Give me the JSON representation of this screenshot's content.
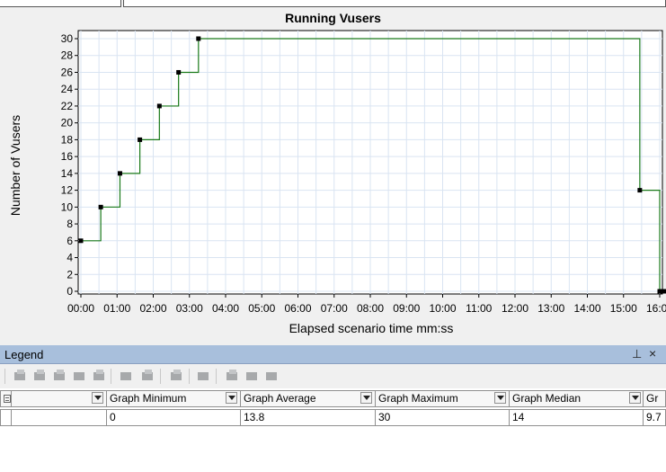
{
  "chart_data": {
    "type": "line",
    "title": "Running Vusers",
    "xlabel": "Elapsed scenario time mm:ss",
    "ylabel": "Number of Vusers",
    "xlim": [
      0,
      16
    ],
    "ylim": [
      0,
      30
    ],
    "x_ticks": [
      "00:00",
      "01:00",
      "02:00",
      "03:00",
      "04:00",
      "05:00",
      "06:00",
      "07:00",
      "08:00",
      "09:00",
      "10:00",
      "11:00",
      "12:00",
      "13:00",
      "14:00",
      "15:00",
      "16:00"
    ],
    "y_ticks": [
      0,
      2,
      4,
      6,
      8,
      10,
      12,
      14,
      16,
      18,
      20,
      22,
      24,
      26,
      28,
      30
    ],
    "grid": true,
    "line_style": "step",
    "series": [
      {
        "x": [
          0.0,
          0.55,
          1.08,
          1.63,
          2.17,
          2.7,
          3.25,
          15.45,
          16.0,
          16.12
        ],
        "y": [
          6,
          10,
          14,
          18,
          22,
          26,
          30,
          12,
          0,
          0
        ],
        "color": "#1a7a1a"
      }
    ]
  },
  "legend_panel": {
    "title": "Legend",
    "pin_icon": "pin-icon",
    "close_icon": "close-icon",
    "close_glyph": "×",
    "pin_glyph": "⊥",
    "columns": [
      {
        "label": ""
      },
      {
        "label": "Graph Minimum"
      },
      {
        "label": "Graph Average"
      },
      {
        "label": "Graph Maximum"
      },
      {
        "label": "Graph Median"
      },
      {
        "label": "Gr"
      }
    ],
    "rows": [
      [
        "",
        "0",
        "13.8",
        "30",
        "14",
        "9.7"
      ]
    ]
  }
}
